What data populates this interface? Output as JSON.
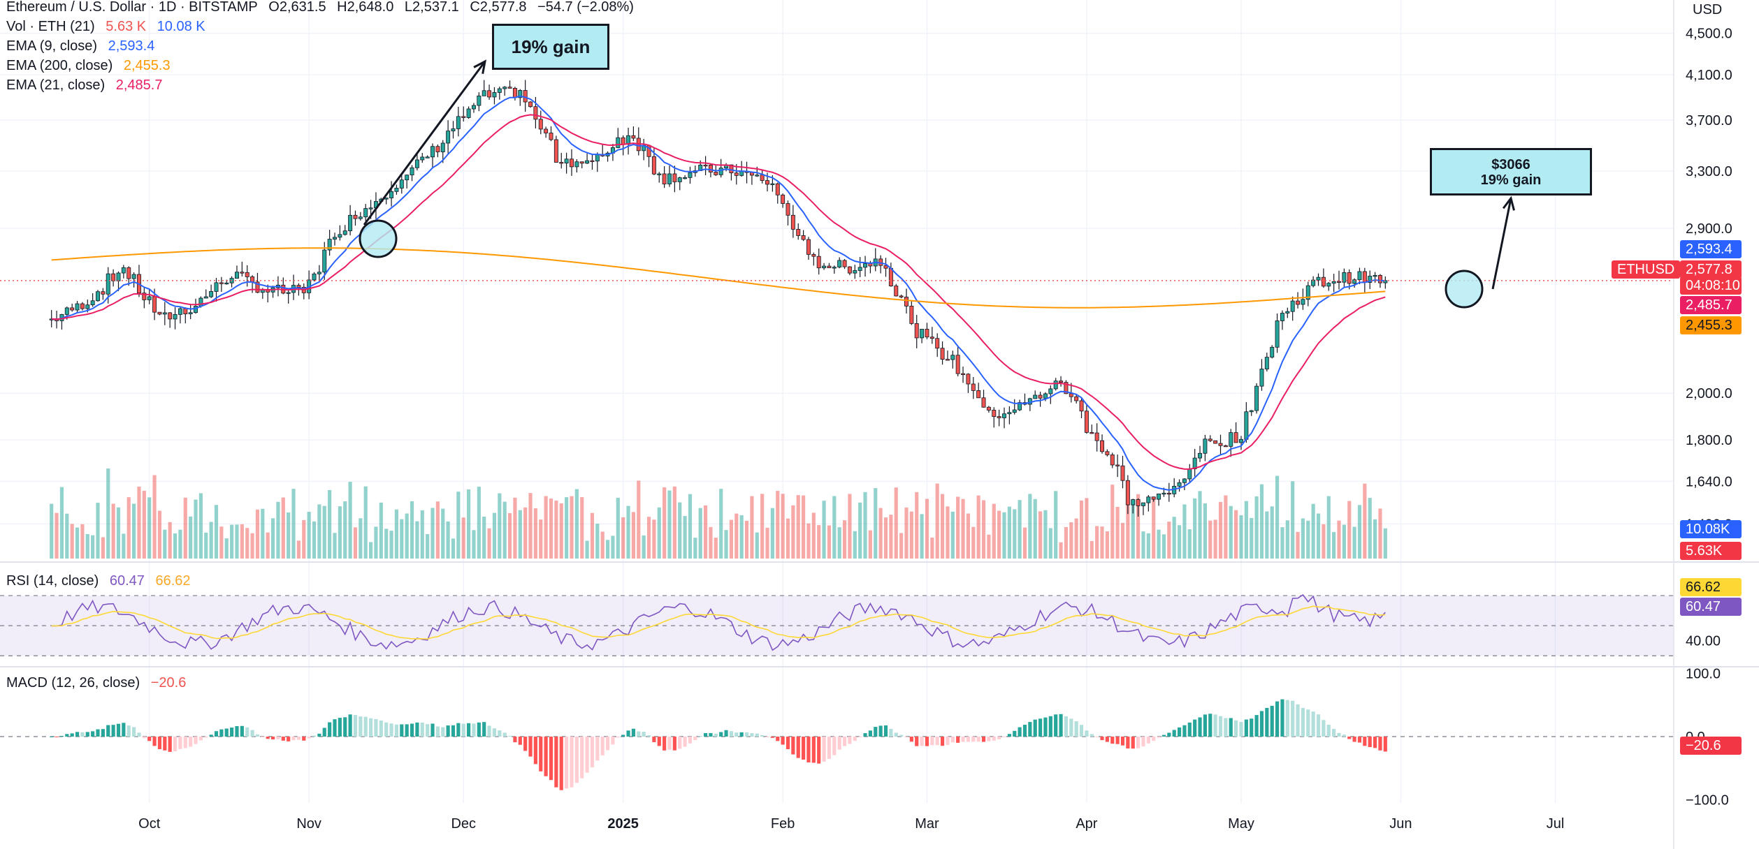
{
  "header": {
    "symbol_line": "Ethereum / U.S. Dollar · 1D · BITSTAMP",
    "ohlc": [
      {
        "label": "O",
        "value": "2,631.5"
      },
      {
        "label": "H",
        "value": "2,648.0"
      },
      {
        "label": "L",
        "value": "2,537.1"
      },
      {
        "label": "C",
        "value": "2,577.8"
      }
    ],
    "change": "−54.7 (−2.08%)",
    "currency": "USD"
  },
  "indicators": {
    "vol": {
      "label": "Vol · ETH (21)",
      "v1": "5.63 K",
      "v2": "10.08 K"
    },
    "ema9": {
      "label": "EMA (9, close)",
      "value": "2,593.4"
    },
    "ema200": {
      "label": "EMA (200, close)",
      "value": "2,455.3"
    },
    "ema21": {
      "label": "EMA (21, close)",
      "value": "2,485.7"
    },
    "rsi": {
      "label": "RSI (14, close)",
      "v1": "60.47",
      "v2": "66.62"
    },
    "macd": {
      "label": "MACD (12, 26, close)",
      "value": "−20.6"
    }
  },
  "annotations": {
    "gain1": "19% gain",
    "target_price": "$3066",
    "target_gain": "19% gain"
  },
  "price_tags": {
    "ema9": "2,593.4",
    "close": "2,577.8",
    "countdown": "04:08:10",
    "ema21": "2,485.7",
    "ema200": "2,455.3",
    "symbol": "ETHUSD",
    "vol_ma": "10.08K",
    "vol": "5.63K",
    "rsi_ma": "66.62",
    "rsi": "60.47",
    "macd": "−20.6"
  },
  "colors": {
    "up": "#26a69a",
    "down": "#ef5350",
    "ema9": "#2962ff",
    "ema21": "#e91e63",
    "ema200": "#ff9800",
    "rsi": "#7e57c2",
    "rsi_ma": "#fdd835",
    "callout": "#b2ebf2"
  },
  "chart_data": {
    "type": "candlestick",
    "x_axis_labels": [
      "Oct",
      "Nov",
      "Dec",
      "2025",
      "Feb",
      "Mar",
      "Apr",
      "May",
      "Jun",
      "Jul"
    ],
    "price_axis": {
      "ticks": [
        "4,500.0",
        "4,100.0",
        "3,700.0",
        "3,300.0",
        "2,900.0",
        "2,000.0",
        "1,800.0",
        "1,640.0",
        "1,490.0"
      ],
      "scale": "log",
      "range": [
        1400,
        4700
      ]
    },
    "rsi_axis": {
      "ticks": [
        "40.00"
      ],
      "bands": [
        30,
        50,
        70
      ],
      "range": [
        25,
        90
      ]
    },
    "macd_axis": {
      "ticks": [
        "100.0",
        "0.0",
        "−100.0"
      ],
      "range": [
        -105,
        105
      ]
    },
    "price_series_weekly_close": [
      {
        "date": "2024-09-12",
        "close": 2360
      },
      {
        "date": "2024-09-19",
        "close": 2460
      },
      {
        "date": "2024-09-26",
        "close": 2650
      },
      {
        "date": "2024-10-03",
        "close": 2360
      },
      {
        "date": "2024-10-10",
        "close": 2440
      },
      {
        "date": "2024-10-17",
        "close": 2620
      },
      {
        "date": "2024-10-24",
        "close": 2520
      },
      {
        "date": "2024-10-31",
        "close": 2510
      },
      {
        "date": "2024-11-07",
        "close": 2900
      },
      {
        "date": "2024-11-14",
        "close": 3100
      },
      {
        "date": "2024-11-21",
        "close": 3300
      },
      {
        "date": "2024-11-28",
        "close": 3600
      },
      {
        "date": "2024-12-05",
        "close": 3900
      },
      {
        "date": "2024-12-12",
        "close": 3950
      },
      {
        "date": "2024-12-19",
        "close": 3400
      },
      {
        "date": "2024-12-26",
        "close": 3350
      },
      {
        "date": "2025-01-02",
        "close": 3600
      },
      {
        "date": "2025-01-09",
        "close": 3250
      },
      {
        "date": "2025-01-16",
        "close": 3300
      },
      {
        "date": "2025-01-23",
        "close": 3300
      },
      {
        "date": "2025-01-30",
        "close": 3200
      },
      {
        "date": "2025-02-06",
        "close": 2700
      },
      {
        "date": "2025-02-13",
        "close": 2650
      },
      {
        "date": "2025-02-20",
        "close": 2700
      },
      {
        "date": "2025-02-27",
        "close": 2300
      },
      {
        "date": "2025-03-06",
        "close": 2150
      },
      {
        "date": "2025-03-13",
        "close": 1900
      },
      {
        "date": "2025-03-20",
        "close": 1950
      },
      {
        "date": "2025-03-27",
        "close": 2050
      },
      {
        "date": "2025-04-03",
        "close": 1800
      },
      {
        "date": "2025-04-10",
        "close": 1560
      },
      {
        "date": "2025-04-17",
        "close": 1590
      },
      {
        "date": "2025-04-24",
        "close": 1780
      },
      {
        "date": "2025-05-01",
        "close": 1820
      },
      {
        "date": "2025-05-08",
        "close": 2350
      },
      {
        "date": "2025-05-15",
        "close": 2560
      },
      {
        "date": "2025-05-22",
        "close": 2600
      },
      {
        "date": "2025-05-29",
        "close": 2577.8
      }
    ]
  }
}
